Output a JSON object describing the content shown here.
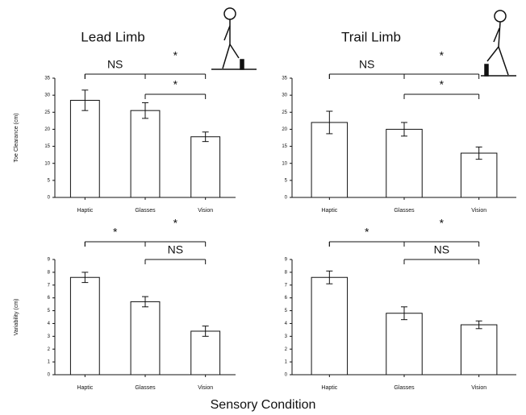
{
  "chart_data": [
    {
      "type": "bar",
      "title": "Lead Limb",
      "ylabel": "Toe Clearance (cm)",
      "categories": [
        "Haptic",
        "Glasses",
        "Vision"
      ],
      "values": [
        28.5,
        25.5,
        17.8
      ],
      "errors": [
        3,
        2.3,
        1.4
      ],
      "color": "#ffffff",
      "ylim": [
        0,
        35
      ],
      "yticks": [
        0,
        5,
        10,
        15,
        20,
        25,
        30,
        35
      ],
      "annotations": [
        {
          "text": "NS",
          "between": [
            "Haptic",
            "Glasses"
          ]
        },
        {
          "text": "*",
          "between": [
            "Haptic",
            "Vision"
          ]
        },
        {
          "text": "*",
          "between": [
            "Glasses",
            "Vision"
          ]
        }
      ]
    },
    {
      "type": "bar",
      "title": "Trail Limb",
      "categories": [
        "Haptic",
        "Glasses",
        "Vision"
      ],
      "values": [
        22,
        20,
        13
      ],
      "errors": [
        3.3,
        2,
        1.8
      ],
      "color": "#ffffff",
      "ylim": [
        0,
        35
      ],
      "yticks": [
        0,
        5,
        10,
        15,
        20,
        25,
        30,
        35
      ],
      "annotations": [
        {
          "text": "NS",
          "between": [
            "Haptic",
            "Glasses"
          ]
        },
        {
          "text": "*",
          "between": [
            "Haptic",
            "Vision"
          ]
        },
        {
          "text": "*",
          "between": [
            "Glasses",
            "Vision"
          ]
        }
      ]
    },
    {
      "type": "bar",
      "ylabel": "Variability (cm)",
      "categories": [
        "Haptic",
        "Glasses",
        "Vision"
      ],
      "values": [
        7.6,
        5.7,
        3.4
      ],
      "errors": [
        0.4,
        0.4,
        0.4
      ],
      "color": "#ffffff",
      "ylim": [
        0,
        9
      ],
      "yticks": [
        0,
        1,
        2,
        3,
        4,
        5,
        6,
        7,
        8,
        9
      ],
      "annotations": [
        {
          "text": "*",
          "between": [
            "Haptic",
            "Glasses"
          ]
        },
        {
          "text": "*",
          "between": [
            "Haptic",
            "Vision"
          ]
        },
        {
          "text": "NS",
          "between": [
            "Glasses",
            "Vision"
          ]
        }
      ]
    },
    {
      "type": "bar",
      "categories": [
        "Haptic",
        "Glasses",
        "Vision"
      ],
      "values": [
        7.6,
        4.8,
        3.9
      ],
      "errors": [
        0.5,
        0.5,
        0.3
      ],
      "color": "#ffffff",
      "ylim": [
        0,
        9
      ],
      "yticks": [
        0,
        1,
        2,
        3,
        4,
        5,
        6,
        7,
        8,
        9
      ],
      "annotations": [
        {
          "text": "*",
          "between": [
            "Haptic",
            "Glasses"
          ]
        },
        {
          "text": "*",
          "between": [
            "Haptic",
            "Vision"
          ]
        },
        {
          "text": "NS",
          "between": [
            "Glasses",
            "Vision"
          ]
        }
      ]
    }
  ],
  "xlabel": "Sensory Condition"
}
